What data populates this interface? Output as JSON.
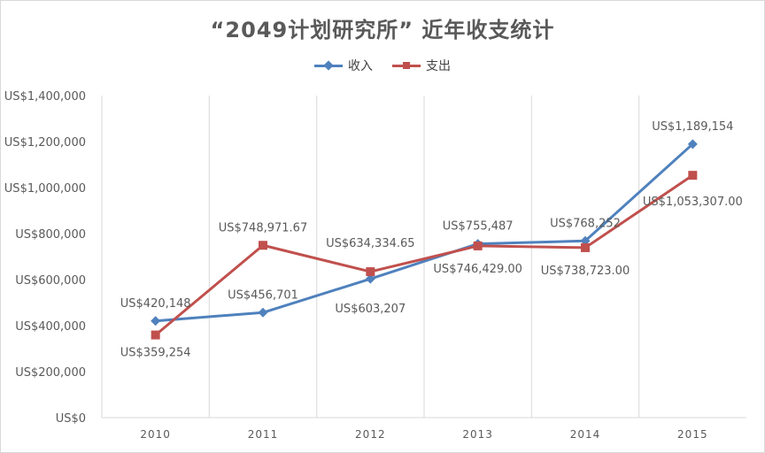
{
  "chart_data": {
    "type": "line",
    "title": "“2049计划研究所” 近年收支统计",
    "categories": [
      "2010",
      "2011",
      "2012",
      "2013",
      "2014",
      "2015"
    ],
    "ylim": [
      0,
      1400000
    ],
    "y_ticks": [
      0,
      200000,
      400000,
      600000,
      800000,
      1000000,
      1200000,
      1400000
    ],
    "y_tick_labels": [
      "US$0",
      "US$200,000",
      "US$400,000",
      "US$600,000",
      "US$800,000",
      "US$1,000,000",
      "US$1,200,000",
      "US$1,400,000"
    ],
    "legend_position": "top",
    "grid": "vertical",
    "series": [
      {
        "name": "收入",
        "color": "#4F81BD",
        "marker": "diamond",
        "values": [
          420148,
          456701,
          603207,
          755487,
          768252,
          1189154
        ],
        "labels": [
          "US$420,148",
          "US$456,701",
          "US$603,207",
          "US$755,487",
          "US$768,252",
          "US$1,189,154"
        ]
      },
      {
        "name": "支出",
        "color": "#C0504D",
        "marker": "square",
        "values": [
          359254,
          748971.67,
          634334.65,
          746429.0,
          738723.0,
          1053307.0
        ],
        "labels": [
          "US$359,254",
          "US$748,971.67",
          "US$634,334.65",
          "US$746,429.00",
          "US$738,723.00",
          "US$1,053,307.00"
        ]
      }
    ]
  }
}
